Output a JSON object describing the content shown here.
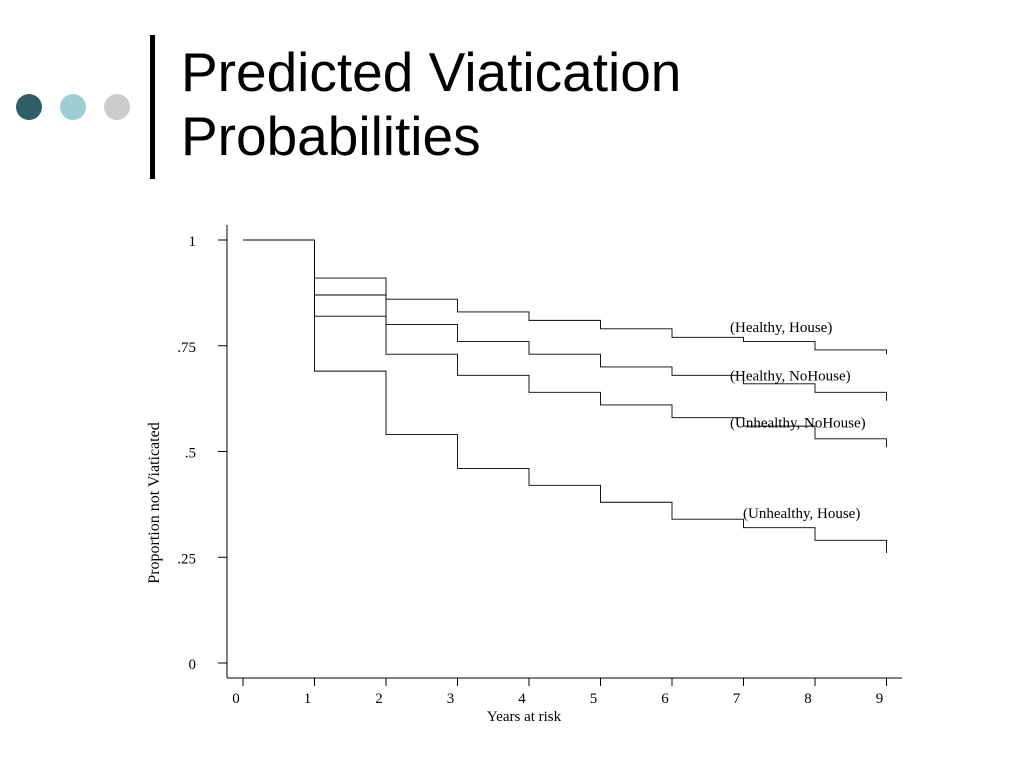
{
  "slide": {
    "title_line1": "Predicted Viatication",
    "title_line2": "Probabilities",
    "dot_colors": [
      "#2f5f66",
      "#9ccfd2",
      "#cccccc"
    ],
    "bar_color": "#000000"
  },
  "chart_data": {
    "type": "line",
    "step": true,
    "title": "",
    "xlabel": "Years at risk",
    "ylabel": "Proportion not Viaticated",
    "xlim": [
      0,
      9
    ],
    "ylim": [
      0,
      1
    ],
    "x_ticks": [
      0,
      1,
      2,
      3,
      4,
      5,
      6,
      7,
      8,
      9
    ],
    "x_tick_labels": [
      "0",
      "1",
      "2",
      "3",
      "4",
      "5",
      "6",
      "7",
      "8",
      "9"
    ],
    "y_ticks": [
      0,
      0.25,
      0.5,
      0.75,
      1
    ],
    "y_tick_labels": [
      "0",
      ".25",
      ".5",
      ".75",
      "1"
    ],
    "grid": false,
    "legend": "none",
    "x": [
      0,
      1,
      2,
      3,
      4,
      5,
      6,
      7,
      8,
      9
    ],
    "series": [
      {
        "name": "(Healthy, House)",
        "values": [
          1,
          0.91,
          0.86,
          0.83,
          0.81,
          0.79,
          0.77,
          0.76,
          0.74,
          0.73
        ]
      },
      {
        "name": "(Healthy, NoHouse)",
        "values": [
          1,
          0.87,
          0.8,
          0.76,
          0.73,
          0.7,
          0.68,
          0.66,
          0.64,
          0.62
        ]
      },
      {
        "name": "(Unhealthy, NoHouse)",
        "values": [
          1,
          0.82,
          0.73,
          0.68,
          0.64,
          0.61,
          0.58,
          0.56,
          0.53,
          0.51
        ]
      },
      {
        "name": "(Unhealthy, House)",
        "values": [
          1,
          0.69,
          0.54,
          0.46,
          0.42,
          0.38,
          0.34,
          0.32,
          0.29,
          0.26
        ]
      }
    ]
  }
}
